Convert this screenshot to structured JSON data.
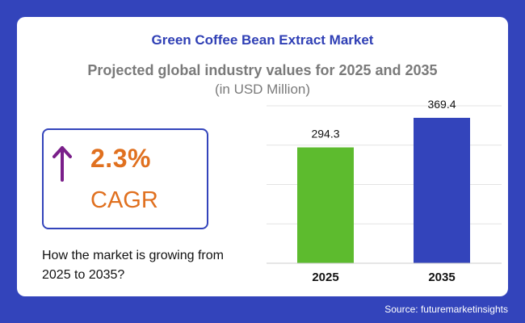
{
  "header": {
    "title": "Green Coffee Bean Extract Market",
    "subtitle": "Projected global industry values for 2025 and 2035",
    "unit": "(in USD Million)"
  },
  "cagr": {
    "value": "2.3%",
    "label": "CAGR",
    "arrow_icon": "arrow-up-icon",
    "arrow_color": "#7a1f8a",
    "text_color": "#e0701f"
  },
  "question": "How the market is growing from 2025 to 2035?",
  "source": "Source: futuremarketinsights",
  "colors": {
    "background": "#3344bb",
    "title": "#2f3fb5",
    "bar_2025": "#5dbb2e",
    "bar_2035": "#3344bb"
  },
  "chart_data": {
    "type": "bar",
    "categories": [
      "2025",
      "2035"
    ],
    "values": [
      294.3,
      369.4
    ],
    "data_labels": [
      "294.3",
      "369.4"
    ],
    "bar_colors": [
      "#5dbb2e",
      "#3344bb"
    ],
    "title": "",
    "xlabel": "",
    "ylabel": "",
    "ylim": [
      0,
      400
    ],
    "grid": true,
    "legend": "none"
  }
}
